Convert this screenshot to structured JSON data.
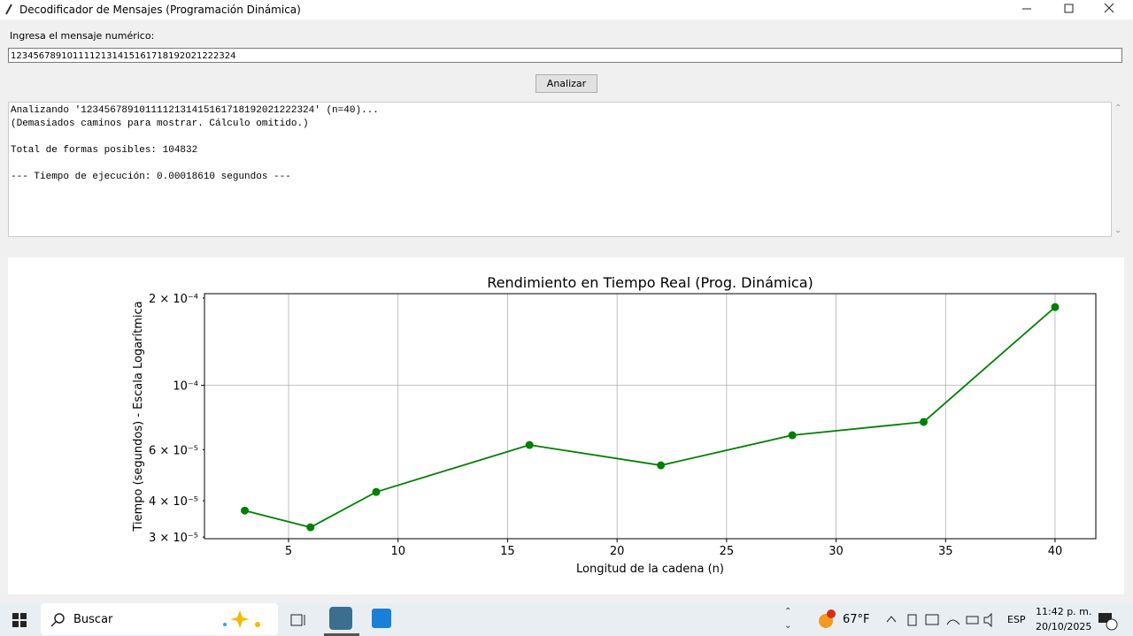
{
  "window": {
    "title": "Decodificador de Mensajes (Programación Dinámica)"
  },
  "form": {
    "label": "Ingresa el mensaje numérico:",
    "input_value": "1234567891011112131415161718192021222324",
    "button": "Analizar"
  },
  "output": {
    "lines": [
      "Analizando '1234567891011112131415161718192021222324' (n=40)...",
      "(Demasiados caminos para mostrar. Cálculo omitido.)",
      "",
      "Total de formas posibles: 104832",
      "",
      "--- Tiempo de ejecución: 0.00018610 segundos ---"
    ]
  },
  "chart_data": {
    "type": "line",
    "title": "Rendimiento en Tiempo Real (Prog. Dinámica)",
    "x_label": "Longitud de la cadena (n)",
    "y_label": "Tiempo (segundos) - Escala Logarítmica",
    "x": [
      3,
      6,
      9,
      16,
      22,
      28,
      34,
      40
    ],
    "series": [
      {
        "color": "#008000",
        "values": [
          3.7e-05,
          3.24e-05,
          4.29e-05,
          6.23e-05,
          5.3e-05,
          6.73e-05,
          7.48e-05,
          0.0001861
        ]
      }
    ],
    "xlim": [
      1.16,
      41.86
    ],
    "xticks": [
      5,
      10,
      15,
      20,
      25,
      30,
      35,
      40
    ],
    "ylim": [
      2.96e-05,
      0.000207
    ],
    "y_log": true,
    "yticks": [
      {
        "value": 0.0001,
        "label": "10⁻⁴"
      }
    ],
    "yminorticks": [
      {
        "value": 3e-05,
        "label": "3 × 10⁻⁵"
      },
      {
        "value": 4e-05,
        "label": "4 × 10⁻⁵"
      },
      {
        "value": 6e-05,
        "label": "6 × 10⁻⁵"
      },
      {
        "value": 0.0002,
        "label": "2 × 10⁻⁴"
      }
    ],
    "grid": true
  },
  "taskbar": {
    "search": "Buscar",
    "weather": "67°F",
    "language": "ESP",
    "time": "11:42 p. m.",
    "date": "20/10/2025"
  }
}
